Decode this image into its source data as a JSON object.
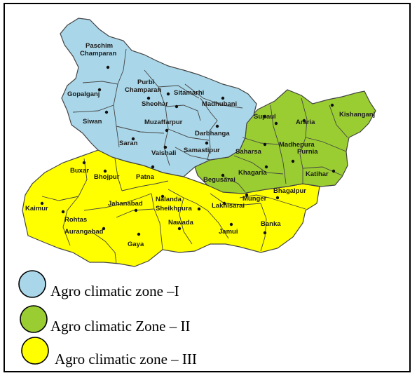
{
  "colors": {
    "zone1": "#a9d6e8",
    "zone2": "#9acd32",
    "zone3": "#ffff00",
    "border": "#444444"
  },
  "legend": [
    {
      "label": "Agro climatic zone –I",
      "color": "#a9d6e8"
    },
    {
      "label": "Agro climatic Zone – II",
      "color": "#9acd32"
    },
    {
      "label": "Agro climatic zone – III",
      "color": "#ffff00"
    }
  ],
  "districts": {
    "paschim": "Paschim",
    "champaran": "Champaran",
    "purbi": "Purbi",
    "purbi_champaran": "Champaran",
    "gopalganj": "Gopalganj",
    "sitamarhi": "Sitamarhi",
    "sheohar": "Sheohar",
    "madhubani": "Madhubani",
    "siwan": "Siwan",
    "muzaffarpur": "Muzaffarpur",
    "darbhanga": "Darbhanga",
    "saran": "Saran",
    "vaishali": "Vaishali",
    "samastipur": "Samastipur",
    "supaul": "Supaul",
    "araria": "Araria",
    "kishanganj": "Kishanganj",
    "madhepura": "Madhepura",
    "saharsa": "Saharsa",
    "purnia": "Purnia",
    "katihar": "Katihar",
    "khagaria": "Khagaria",
    "begusarai": "Begusarai",
    "buxar": "Buxar",
    "bhojpur": "Bhojpur",
    "patna": "Patna",
    "nalanda": "Nalanda",
    "jahanabad": "Jahanabad",
    "sheikhpura": "Sheikhpura",
    "lakhisarai": "Lakhisarai",
    "munger": "Munger",
    "bhagalpur": "Bhagalpur",
    "kaimur": "Kaimur",
    "rohtas": "Rohtas",
    "aurangabad": "Aurangabad",
    "gaya": "Gaya",
    "nawada": "Nawada",
    "jamui": "Jamui",
    "banka": "Banka"
  }
}
